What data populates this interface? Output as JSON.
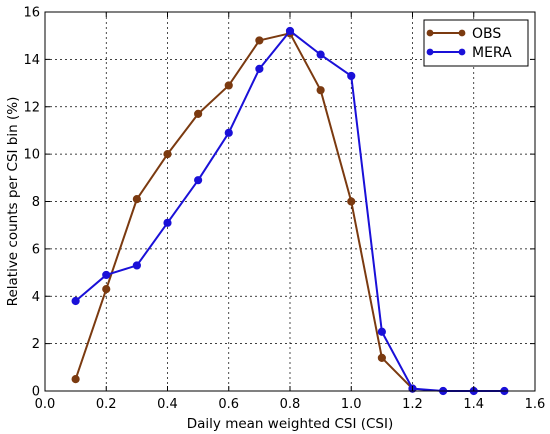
{
  "chart_data": {
    "type": "line",
    "title": "",
    "xlabel": "Daily mean weighted CSI (CSI)",
    "ylabel": "Relative counts per CSI bin (%)",
    "xlim": [
      0.0,
      1.6
    ],
    "ylim": [
      0,
      16
    ],
    "xticks": [
      0.0,
      0.2,
      0.4,
      0.6,
      0.8,
      1.0,
      1.2,
      1.4,
      1.6
    ],
    "xtick_labels": [
      "0.0",
      "0.2",
      "0.4",
      "0.6",
      "0.8",
      "1.0",
      "1.2",
      "1.4",
      "1.6"
    ],
    "yticks": [
      0,
      2,
      4,
      6,
      8,
      10,
      12,
      14,
      16
    ],
    "ytick_labels": [
      "0",
      "2",
      "4",
      "6",
      "8",
      "10",
      "12",
      "14",
      "16"
    ],
    "grid": true,
    "legend_position": "top-right",
    "series": [
      {
        "name": "OBS",
        "color": "#7b3a10",
        "x": [
          0.1,
          0.2,
          0.3,
          0.4,
          0.5,
          0.6,
          0.7,
          0.8,
          0.9,
          1.0,
          1.1,
          1.2
        ],
        "values": [
          0.5,
          4.3,
          8.1,
          10.0,
          11.7,
          12.9,
          14.8,
          15.1,
          12.7,
          8.0,
          1.4,
          0.1
        ]
      },
      {
        "name": "MERA",
        "color": "#1a10d8",
        "x": [
          0.1,
          0.2,
          0.3,
          0.4,
          0.5,
          0.6,
          0.7,
          0.8,
          0.9,
          1.0,
          1.1,
          1.2,
          1.3,
          1.4,
          1.5
        ],
        "values": [
          3.8,
          4.9,
          5.3,
          7.1,
          8.9,
          10.9,
          13.6,
          15.2,
          14.2,
          13.3,
          2.5,
          0.1,
          0.0,
          0.0,
          0.0
        ]
      }
    ]
  }
}
